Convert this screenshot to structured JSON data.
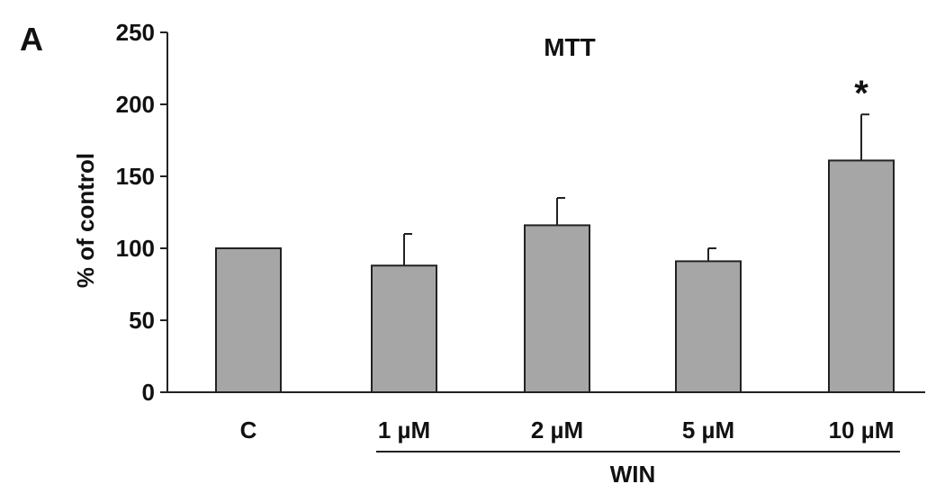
{
  "chart_data": {
    "type": "bar",
    "panel_label": "A",
    "title": "MTT",
    "ylabel": "% of control",
    "xlabel": "",
    "ylim": [
      0,
      250
    ],
    "yticks": [
      0,
      50,
      100,
      150,
      200,
      250
    ],
    "categories": [
      "C",
      "1 µM",
      "2 µM",
      "5 µM",
      "10 µM"
    ],
    "values": [
      100,
      88,
      116,
      91,
      161
    ],
    "errors": [
      0,
      22,
      19,
      9,
      32
    ],
    "annotations": [
      {
        "category": "10 µM",
        "text": "*"
      }
    ],
    "group_label": {
      "text": "WIN",
      "categories": [
        "1 µM",
        "2 µM",
        "5 µM",
        "10 µM"
      ]
    },
    "bar_color": "#a6a6a6",
    "grid": false,
    "legend": "none"
  }
}
